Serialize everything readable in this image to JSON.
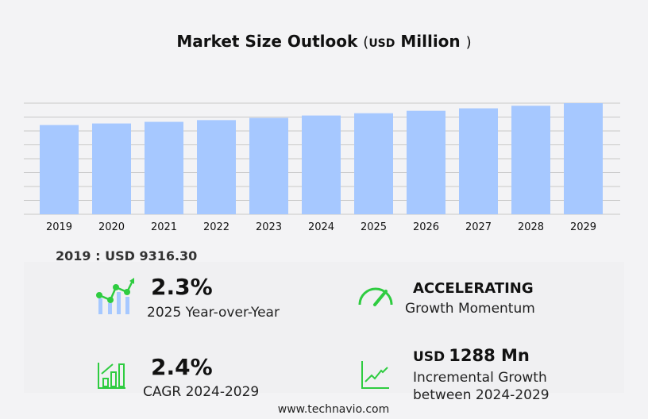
{
  "title": {
    "main": "Market Size Outlook",
    "open": "(",
    "unit": "USD",
    "unit_word": "Million",
    "close": ")"
  },
  "chart_data": {
    "type": "bar",
    "title": "Market Size Outlook (USD Million)",
    "categories": [
      "2019",
      "2020",
      "2021",
      "2022",
      "2023",
      "2024",
      "2025",
      "2026",
      "2027",
      "2028",
      "2029"
    ],
    "values": [
      9316.3,
      9480,
      9650,
      9830,
      10060,
      10310,
      10550,
      10800,
      11060,
      11330,
      11600
    ],
    "ylim": [
      0,
      11600
    ],
    "grid": true,
    "bar_color": "#a6c8ff"
  },
  "base_label": "2019 : USD  9316.30",
  "stats": [
    {
      "value": "2.3%",
      "label": "2025 Year-over-Year",
      "icon": "growth-chart-icon"
    },
    {
      "value": "ACCELERATING",
      "label": "Growth Momentum",
      "icon": "speedometer-icon"
    },
    {
      "value": "2.4%",
      "label": "CAGR 2024-2029",
      "icon": "bar-chart-up-icon"
    },
    {
      "value_prefix": "USD",
      "value": "1288 Mn",
      "label1": "Incremental Growth",
      "label2": "between 2024-2029",
      "icon": "line-chart-up-icon"
    }
  ],
  "accent": "#2ecc40",
  "footer": "www.technavio.com"
}
